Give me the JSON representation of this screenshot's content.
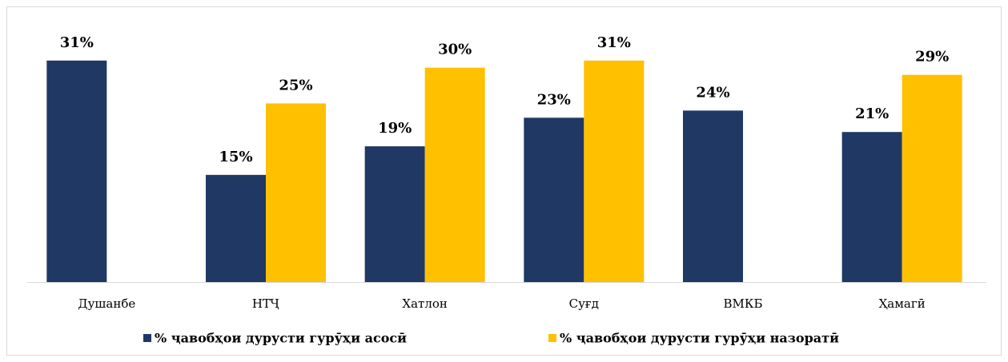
{
  "chart_data": {
    "type": "bar",
    "categories": [
      "Душанбе",
      "НТҶ",
      "Хатлон",
      "Суғд",
      "ВМКБ",
      "Ҳамагӣ"
    ],
    "series": [
      {
        "name": "% ҷавобҳои дурусти гурӯҳи асосӣ",
        "color": "#1f3864",
        "values": [
          31,
          15,
          19,
          23,
          24,
          21
        ],
        "value_labels": [
          "31%",
          "15%",
          "19%",
          "23%",
          "24%",
          "21%"
        ]
      },
      {
        "name": "% ҷавобҳои дурусти гурӯҳи назоратӣ",
        "color": "#ffc000",
        "values": [
          null,
          25,
          30,
          31,
          null,
          29
        ],
        "value_labels": [
          null,
          "25%",
          "30%",
          "31%",
          null,
          "29%"
        ]
      }
    ],
    "ylim": [
      0,
      35
    ],
    "legend": "bottom"
  }
}
